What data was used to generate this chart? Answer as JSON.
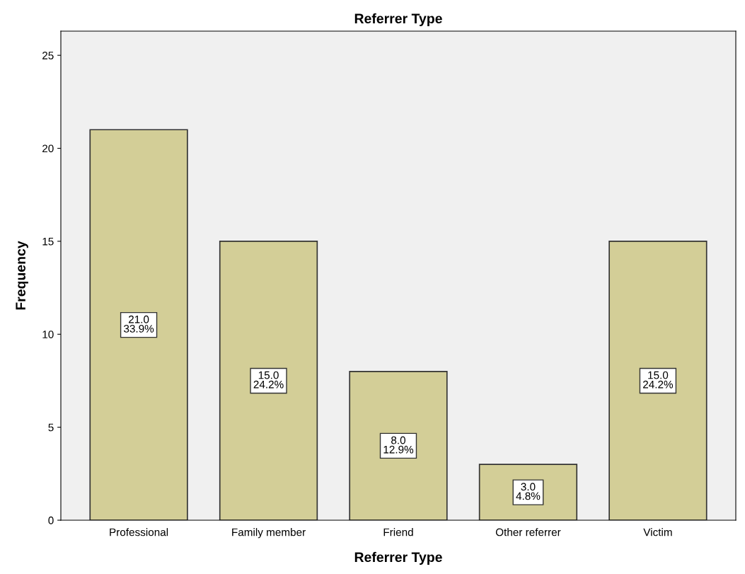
{
  "chart_data": {
    "type": "bar",
    "title": "Referrer Type",
    "xlabel": "Referrer Type",
    "ylabel": "Frequency",
    "categories": [
      "Professional",
      "Family member",
      "Friend",
      "Other referrer",
      "Victim"
    ],
    "values": [
      21,
      15,
      8,
      3,
      15
    ],
    "value_labels": [
      "21.0\n33.9%",
      "15.0\n24.2%",
      "8.0\n12.9%",
      "3.0\n4.8%",
      "15.0\n24.2%"
    ],
    "color": "#d3ce97",
    "ylim": [
      0,
      26.3
    ],
    "yticks": [
      0,
      5,
      10,
      15,
      20,
      25
    ],
    "grid": false
  }
}
